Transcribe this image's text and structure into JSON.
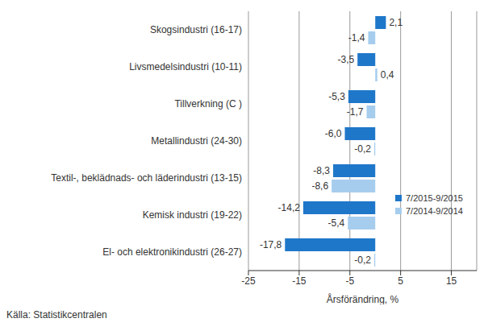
{
  "chart_data": {
    "type": "bar",
    "orientation": "horizontal",
    "categories": [
      "Skogsindustri (16-17)",
      "Livsmedelsindustri (10-11)",
      "Tillverkning (C )",
      "Metallindustri (24-30)",
      "Textil-, beklädnads- och läderindustri (13-15)",
      "Kemisk industri (19-22)",
      "El- och elektronikindustri (26-27)"
    ],
    "series": [
      {
        "name": "7/2015-9/2015",
        "color": "#1f77c9",
        "values": [
          2.1,
          -3.5,
          -5.3,
          -6.0,
          -8.3,
          -14.2,
          -17.8
        ],
        "value_labels": [
          "2,1",
          "-3,5",
          "-5,3",
          "-6,0",
          "-8,3",
          "-14,2",
          "-17,8"
        ]
      },
      {
        "name": "7/2014-9/2014",
        "color": "#a6cdee",
        "values": [
          -1.4,
          0.4,
          -1.7,
          -0.2,
          -8.6,
          -5.4,
          -0.2
        ],
        "value_labels": [
          "-1,4",
          "0,4",
          "-1,7",
          "-0,2",
          "-8,6",
          "-5,4",
          "-0,2"
        ]
      }
    ],
    "xlim": [
      -25,
      20
    ],
    "xticks": [
      -25,
      -15,
      -5,
      5,
      15
    ],
    "xlabel": "Årsförändring, %",
    "grid": true,
    "legend": "right",
    "data_labels": true,
    "source": "Källa: Statistikcentralen"
  }
}
